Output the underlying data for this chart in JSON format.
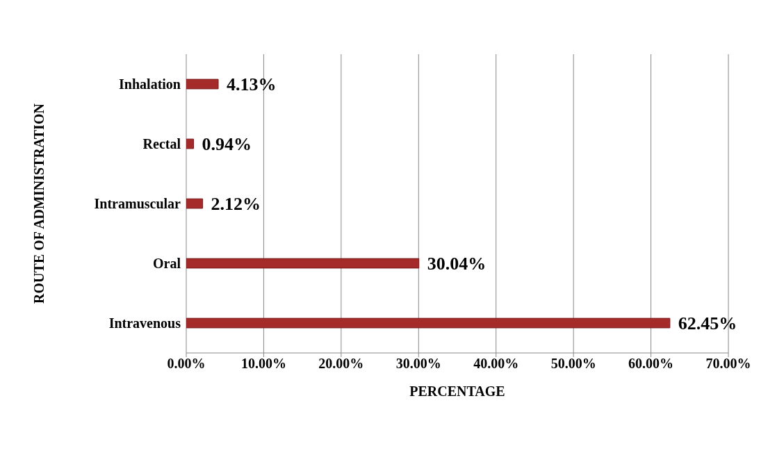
{
  "chart_data": {
    "type": "bar",
    "orientation": "horizontal",
    "xlabel": "PERCENTAGE",
    "ylabel": "ROUTE OF ADMINISTRATION",
    "categories": [
      "Inhalation",
      "Rectal",
      "Intramuscular",
      "Oral",
      "Intravenous"
    ],
    "values": [
      4.13,
      0.94,
      2.12,
      30.04,
      62.45
    ],
    "value_labels": [
      "4.13%",
      "0.94%",
      "2.12%",
      "30.04%",
      "62.45%"
    ],
    "color": "#a52a2a",
    "xlim": [
      0,
      70
    ],
    "xticks": [
      {
        "value": 0,
        "label": "0.00%"
      },
      {
        "value": 10,
        "label": "10.00%"
      },
      {
        "value": 20,
        "label": "20.00%"
      },
      {
        "value": 30,
        "label": "30.00%"
      },
      {
        "value": 40,
        "label": "40.00%"
      },
      {
        "value": 50,
        "label": "50.00%"
      },
      {
        "value": 60,
        "label": "60.00%"
      },
      {
        "value": 70,
        "label": "70.00%"
      }
    ],
    "grid": "x",
    "legend": false
  }
}
